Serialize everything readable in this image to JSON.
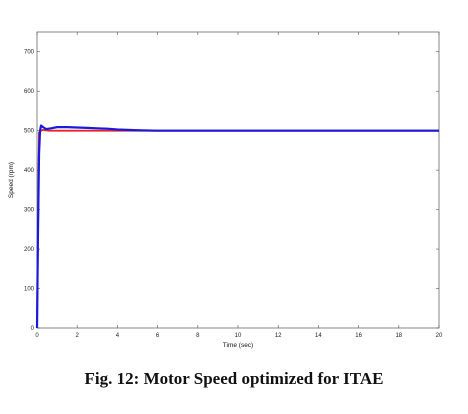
{
  "figure": {
    "caption": "Fig. 12: Motor Speed optimized for ITAE"
  },
  "chart_data": {
    "type": "line",
    "title": "",
    "xlabel": "Time (sec)",
    "ylabel": "Speed (rpm)",
    "xlim": [
      0,
      20
    ],
    "ylim": [
      0,
      750
    ],
    "xticks": [
      0,
      2,
      4,
      6,
      8,
      10,
      12,
      14,
      16,
      18,
      20
    ],
    "yticks": [
      0,
      100,
      200,
      300,
      400,
      500,
      600,
      700
    ],
    "grid": false,
    "series": [
      {
        "color": "#e8222a",
        "x": [
          0,
          0.1,
          0.2,
          0.3,
          0.4,
          0.6,
          1.0,
          1.5,
          2.0,
          3.0,
          4.0,
          5.0,
          6.0,
          8.0,
          10.0,
          12.0,
          14.0,
          16.0,
          18.0,
          20.0
        ],
        "y": [
          0,
          495,
          500,
          502,
          501,
          500,
          500,
          500,
          500,
          500,
          500,
          500,
          500,
          500,
          500,
          500,
          500,
          500,
          500,
          500
        ]
      },
      {
        "color": "#1a1adc",
        "x": [
          0,
          0.05,
          0.1,
          0.15,
          0.2,
          0.3,
          0.45,
          0.7,
          1.0,
          1.5,
          2.0,
          2.5,
          3.0,
          3.5,
          4.0,
          4.5,
          5.0,
          6.0,
          8.0,
          10.0,
          12.0,
          14.0,
          16.0,
          18.0,
          20.0
        ],
        "y": [
          0,
          250,
          440,
          500,
          513,
          509,
          504,
          506,
          509,
          509,
          508,
          507,
          506,
          505,
          503,
          502,
          501,
          500,
          500,
          500,
          500,
          500,
          500,
          500,
          500
        ]
      }
    ]
  }
}
